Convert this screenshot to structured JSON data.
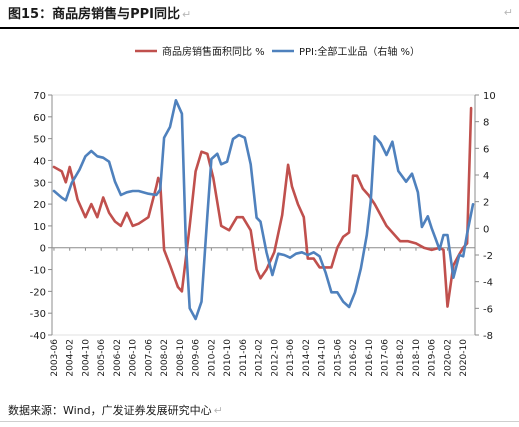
{
  "header": {
    "title": "图15：商品房销售与PPI同比",
    "mark": "↵",
    "corner_mark": "↵"
  },
  "source": {
    "text": "数据来源：Wind，广发证券发展研究中心",
    "mark": "↵"
  },
  "chart_data": {
    "type": "line",
    "title": "",
    "xlabel": "",
    "ylabel": "",
    "grid": false,
    "legend_position": "top",
    "x_tick_labels": [
      "2003-06",
      "2004-02",
      "2004-10",
      "2005-06",
      "2006-02",
      "2006-10",
      "2007-06",
      "2008-02",
      "2008-10",
      "2009-06",
      "2010-02",
      "2010-10",
      "2011-06",
      "2012-02",
      "2012-10",
      "2013-06",
      "2014-02",
      "2014-10",
      "2015-06",
      "2016-02",
      "2016-10",
      "2017-06",
      "2018-02",
      "2018-10",
      "2019-06",
      "2020-02",
      "2020-10"
    ],
    "x_start": "2003-06",
    "y_left": {
      "min": -40,
      "max": 70,
      "step": 10,
      "ticks": [
        70,
        60,
        50,
        40,
        30,
        20,
        10,
        0,
        -10,
        -20,
        -30,
        -40
      ]
    },
    "y_right": {
      "min": -8,
      "max": 10,
      "step": 2,
      "ticks": [
        10,
        8,
        6,
        4,
        2,
        0,
        -2,
        -4,
        -6,
        -8
      ]
    },
    "series": [
      {
        "name": "商品房销售面积同比 %",
        "axis": "left",
        "color": "#c0504d",
        "points": [
          [
            "2003-06",
            37
          ],
          [
            "2003-10",
            35
          ],
          [
            "2003-12",
            30
          ],
          [
            "2004-02",
            37
          ],
          [
            "2004-04",
            30
          ],
          [
            "2004-06",
            22
          ],
          [
            "2004-10",
            14
          ],
          [
            "2005-01",
            20
          ],
          [
            "2005-04",
            14
          ],
          [
            "2005-07",
            23
          ],
          [
            "2005-10",
            16
          ],
          [
            "2006-01",
            12
          ],
          [
            "2006-04",
            10
          ],
          [
            "2006-07",
            16
          ],
          [
            "2006-10",
            10
          ],
          [
            "2007-01",
            11
          ],
          [
            "2007-06",
            14
          ],
          [
            "2007-10",
            28
          ],
          [
            "2007-11",
            32
          ],
          [
            "2007-12",
            30
          ],
          [
            "2008-02",
            -1
          ],
          [
            "2008-05",
            -8
          ],
          [
            "2008-09",
            -18
          ],
          [
            "2008-11",
            -20
          ],
          [
            "2009-03",
            10
          ],
          [
            "2009-06",
            35
          ],
          [
            "2009-09",
            44
          ],
          [
            "2009-12",
            43
          ],
          [
            "2010-03",
            32
          ],
          [
            "2010-07",
            10
          ],
          [
            "2010-11",
            8
          ],
          [
            "2011-03",
            14
          ],
          [
            "2011-06",
            14
          ],
          [
            "2011-10",
            8
          ],
          [
            "2012-01",
            -10
          ],
          [
            "2012-03",
            -14
          ],
          [
            "2012-06",
            -10
          ],
          [
            "2012-10",
            -2
          ],
          [
            "2013-02",
            15
          ],
          [
            "2013-05",
            38
          ],
          [
            "2013-07",
            28
          ],
          [
            "2013-10",
            20
          ],
          [
            "2014-01",
            14
          ],
          [
            "2014-03",
            -5
          ],
          [
            "2014-06",
            -5
          ],
          [
            "2014-09",
            -9
          ],
          [
            "2014-12",
            -9
          ],
          [
            "2015-03",
            -9
          ],
          [
            "2015-06",
            0
          ],
          [
            "2015-09",
            5
          ],
          [
            "2015-12",
            7
          ],
          [
            "2016-02",
            33
          ],
          [
            "2016-04",
            33
          ],
          [
            "2016-07",
            27
          ],
          [
            "2016-10",
            24
          ],
          [
            "2017-01",
            20
          ],
          [
            "2017-04",
            15
          ],
          [
            "2017-07",
            10
          ],
          [
            "2017-10",
            7
          ],
          [
            "2018-02",
            3
          ],
          [
            "2018-06",
            3
          ],
          [
            "2018-10",
            2
          ],
          [
            "2019-02",
            0
          ],
          [
            "2019-06",
            -1
          ],
          [
            "2019-10",
            0
          ],
          [
            "2019-12",
            -1
          ],
          [
            "2020-02",
            -27
          ],
          [
            "2020-05",
            -8
          ],
          [
            "2020-08",
            -3
          ],
          [
            "2020-10",
            0
          ],
          [
            "2020-12",
            2
          ],
          [
            "2021-02",
            64
          ]
        ]
      },
      {
        "name": "PPI:全部工业品（右轴 %）",
        "axis": "right",
        "color": "#4f81bd",
        "points": [
          [
            "2003-06",
            2.8
          ],
          [
            "2003-10",
            2.3
          ],
          [
            "2003-12",
            2.1
          ],
          [
            "2004-03",
            3.4
          ],
          [
            "2004-07",
            4.4
          ],
          [
            "2004-10",
            5.4
          ],
          [
            "2005-01",
            5.8
          ],
          [
            "2005-04",
            5.4
          ],
          [
            "2005-07",
            5.3
          ],
          [
            "2005-10",
            5.0
          ],
          [
            "2006-01",
            3.5
          ],
          [
            "2006-04",
            2.5
          ],
          [
            "2006-07",
            2.7
          ],
          [
            "2006-10",
            2.8
          ],
          [
            "2007-01",
            2.8
          ],
          [
            "2007-06",
            2.6
          ],
          [
            "2007-10",
            2.5
          ],
          [
            "2007-12",
            2.9
          ],
          [
            "2008-02",
            6.8
          ],
          [
            "2008-05",
            7.6
          ],
          [
            "2008-08",
            9.6
          ],
          [
            "2008-11",
            8.6
          ],
          [
            "2009-01",
            -1
          ],
          [
            "2009-03",
            -6
          ],
          [
            "2009-06",
            -6.8
          ],
          [
            "2009-09",
            -5.5
          ],
          [
            "2009-12",
            1
          ],
          [
            "2010-02",
            5.2
          ],
          [
            "2010-05",
            5.6
          ],
          [
            "2010-07",
            4.8
          ],
          [
            "2010-10",
            5.0
          ],
          [
            "2011-01",
            6.7
          ],
          [
            "2011-04",
            7.0
          ],
          [
            "2011-07",
            6.8
          ],
          [
            "2011-10",
            4.8
          ],
          [
            "2012-01",
            0.8
          ],
          [
            "2012-03",
            0.5
          ],
          [
            "2012-06",
            -1.8
          ],
          [
            "2012-09",
            -3.5
          ],
          [
            "2012-12",
            -1.9
          ],
          [
            "2013-03",
            -2.0
          ],
          [
            "2013-06",
            -2.2
          ],
          [
            "2013-09",
            -1.9
          ],
          [
            "2013-12",
            -1.8
          ],
          [
            "2014-03",
            -2.0
          ],
          [
            "2014-06",
            -1.8
          ],
          [
            "2014-09",
            -2.1
          ],
          [
            "2014-12",
            -3.3
          ],
          [
            "2015-03",
            -4.8
          ],
          [
            "2015-06",
            -4.8
          ],
          [
            "2015-09",
            -5.5
          ],
          [
            "2015-12",
            -5.9
          ],
          [
            "2016-03",
            -4.8
          ],
          [
            "2016-06",
            -3.0
          ],
          [
            "2016-09",
            -0.5
          ],
          [
            "2016-11",
            2.0
          ],
          [
            "2017-01",
            6.9
          ],
          [
            "2017-04",
            6.4
          ],
          [
            "2017-07",
            5.5
          ],
          [
            "2017-10",
            6.5
          ],
          [
            "2018-01",
            4.3
          ],
          [
            "2018-05",
            3.5
          ],
          [
            "2018-08",
            4.1
          ],
          [
            "2018-11",
            2.7
          ],
          [
            "2019-01",
            0.1
          ],
          [
            "2019-04",
            0.9
          ],
          [
            "2019-06",
            0
          ],
          [
            "2019-08",
            -0.8
          ],
          [
            "2019-10",
            -1.6
          ],
          [
            "2019-12",
            -0.5
          ],
          [
            "2020-02",
            -0.5
          ],
          [
            "2020-05",
            -3.7
          ],
          [
            "2020-08",
            -2.0
          ],
          [
            "2020-10",
            -2.1
          ],
          [
            "2020-12",
            -0.4
          ],
          [
            "2021-03",
            1.8
          ]
        ]
      }
    ]
  }
}
